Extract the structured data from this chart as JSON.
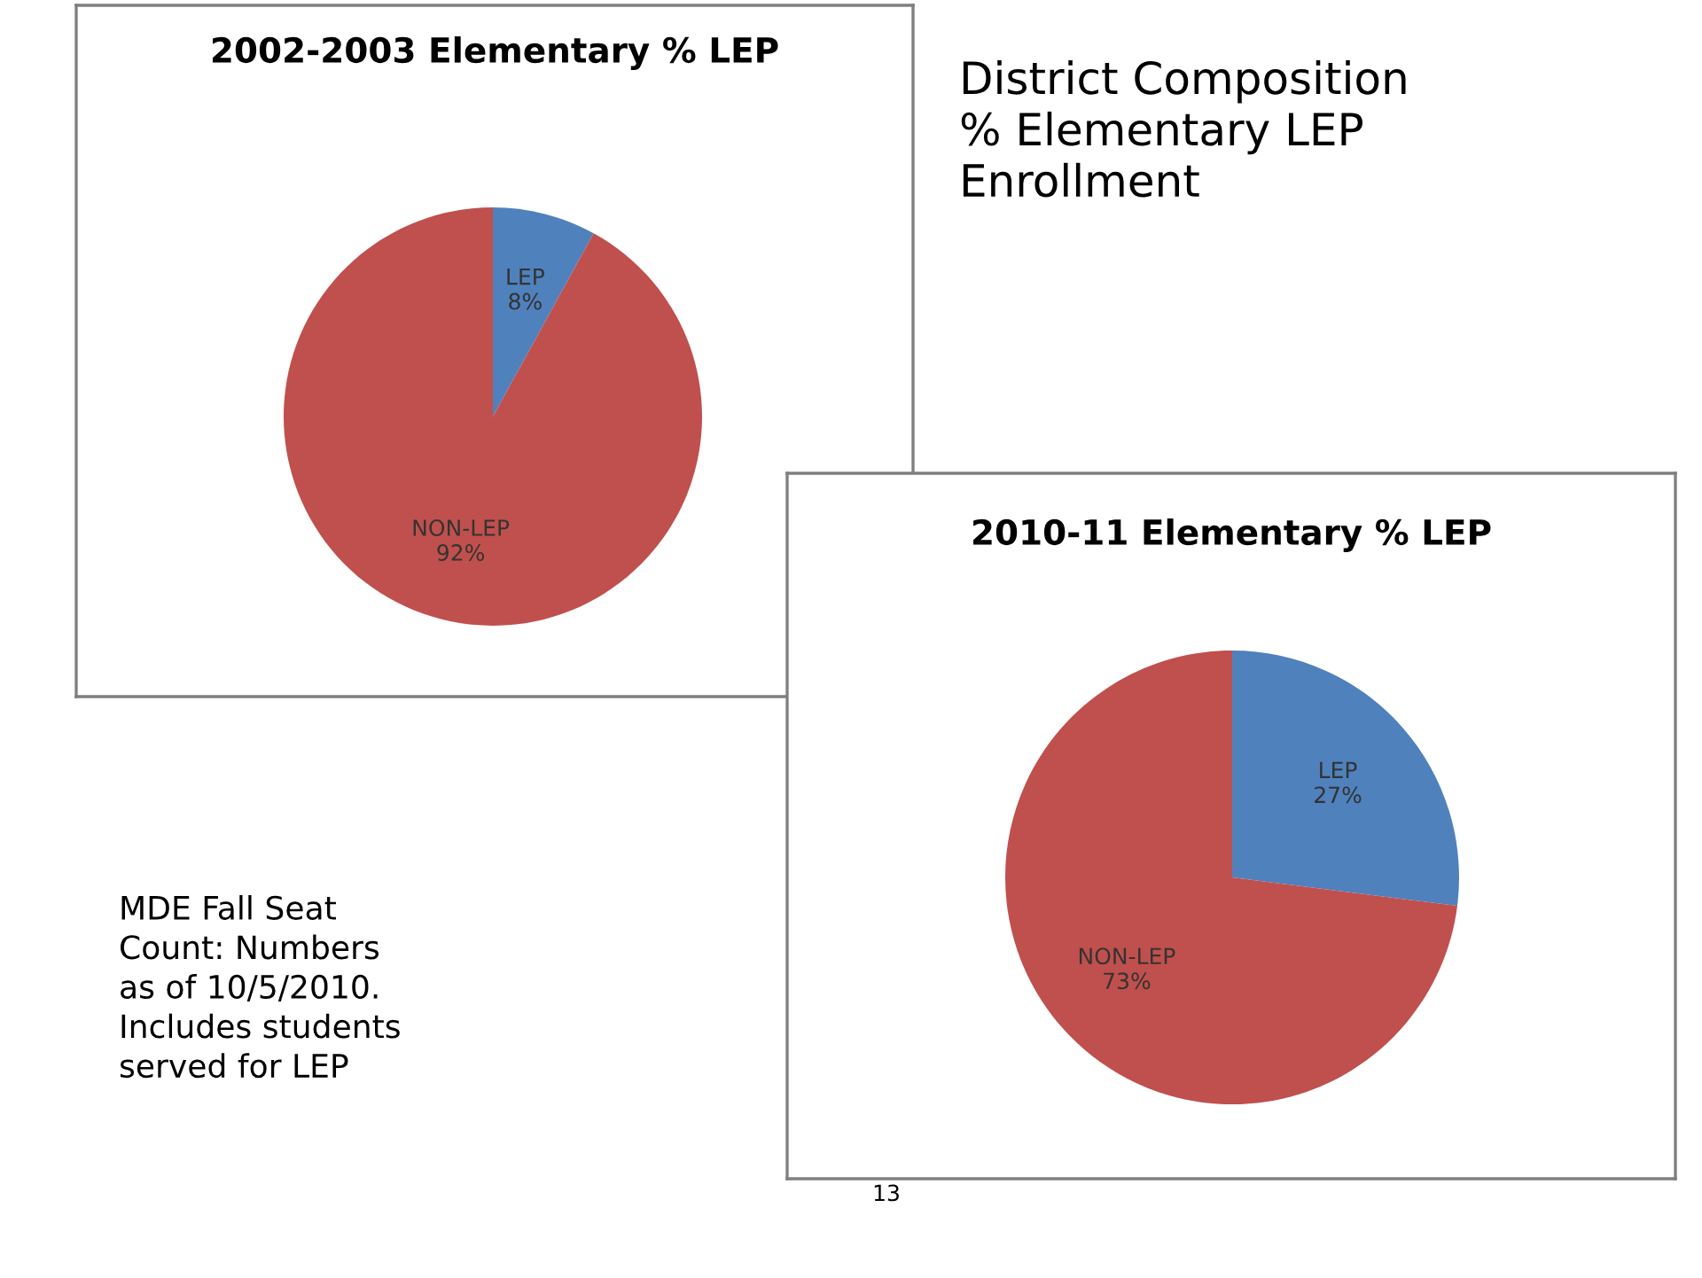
{
  "chart_data": [
    {
      "type": "pie",
      "title": "2002-2003 Elementary % LEP",
      "categories": [
        "LEP",
        "NON-LEP"
      ],
      "values": [
        8,
        92
      ],
      "value_labels": [
        "8%",
        "92%"
      ],
      "colors": [
        "#4f81bd",
        "#c0504d"
      ]
    },
    {
      "type": "pie",
      "title": "2010-11 Elementary % LEP",
      "categories": [
        "LEP",
        "NON-LEP"
      ],
      "values": [
        27,
        73
      ],
      "value_labels": [
        "27%",
        "73%"
      ],
      "colors": [
        "#4f81bd",
        "#c0504d"
      ]
    },
    {
      "type": "other",
      "title": "District Composition\n% Elementary LEP\nEnrollment",
      "annotations": [
        "MDE Fall Seat\nCount: Numbers\nas of 10/5/2010.\nIncludes students\nserved for LEP",
        "13"
      ]
    }
  ]
}
